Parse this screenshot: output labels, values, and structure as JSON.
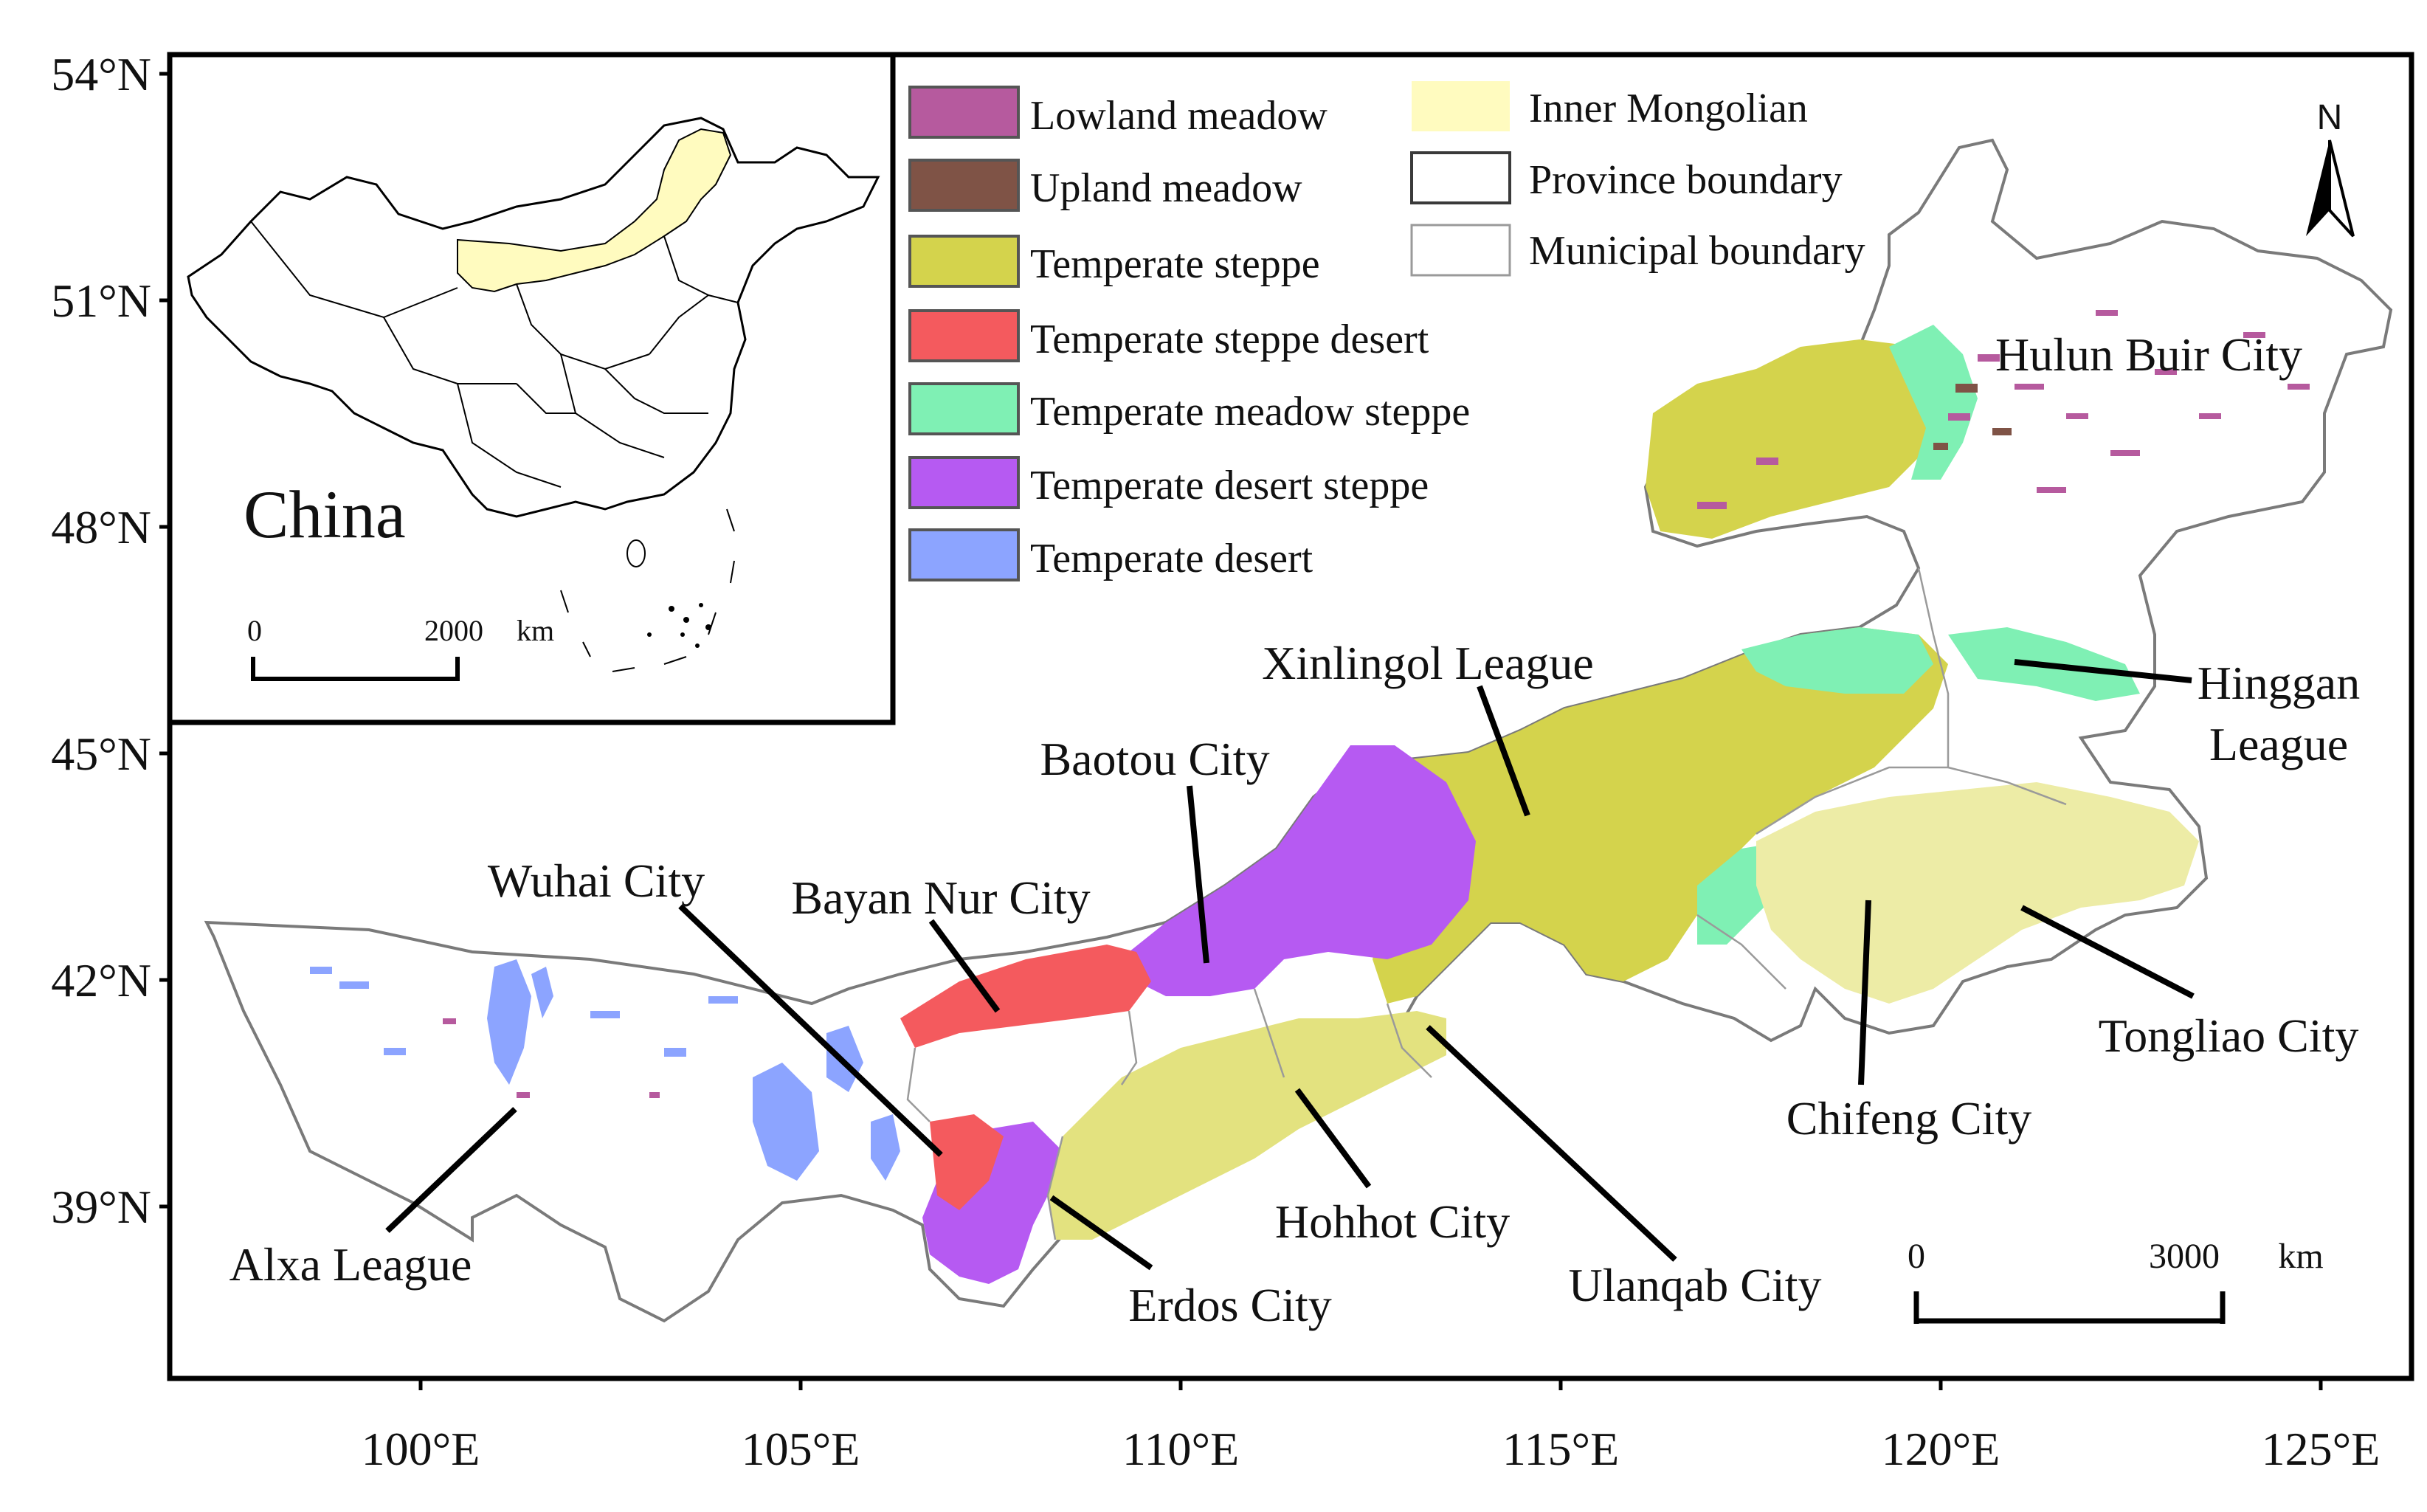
{
  "map": {
    "title": "",
    "lat_ticks": [
      "54°N",
      "51°N",
      "48°N",
      "45°N",
      "42°N",
      "39°N"
    ],
    "lon_ticks": [
      "100°E",
      "105°E",
      "110°E",
      "115°E",
      "120°E",
      "125°E"
    ],
    "north_label": "N",
    "scale_bar": {
      "start": "0",
      "end": "3000",
      "unit": "km"
    }
  },
  "legend": {
    "classes": [
      {
        "label": "Lowland meadow",
        "color": "#b65a9e"
      },
      {
        "label": "Upland meadow",
        "color": "#7f5346"
      },
      {
        "label": "Temperate steppe",
        "color": "#d4d34c"
      },
      {
        "label": "Temperate steppe desert",
        "color": "#f45a5e"
      },
      {
        "label": "Temperate meadow steppe",
        "color": "#7ff0b4"
      },
      {
        "label": "Temperate desert steppe",
        "color": "#b65af2"
      },
      {
        "label": "Temperate desert",
        "color": "#8ca4ff"
      }
    ],
    "boundaries": [
      {
        "label": "Inner Mongolian",
        "color": "#fffbbf"
      },
      {
        "label": "Province boundary",
        "color": "#3a3a3a"
      },
      {
        "label": "Municipal boundary",
        "color": "#9a9a9a"
      }
    ]
  },
  "places": [
    "Hulun Buir City",
    "Hinggan",
    "League",
    "Xinlingol League",
    "Baotou City",
    "Wuhai City",
    "Bayan Nur City",
    "Tongliao City",
    "Chifeng City",
    "Hohhot City",
    "Ulanqab City",
    "Erdos City",
    "Alxa League"
  ],
  "inset": {
    "label": "China",
    "scale_bar": {
      "start": "0",
      "end": "2000",
      "unit": "km"
    },
    "highlight_color": "#fffbbf"
  }
}
